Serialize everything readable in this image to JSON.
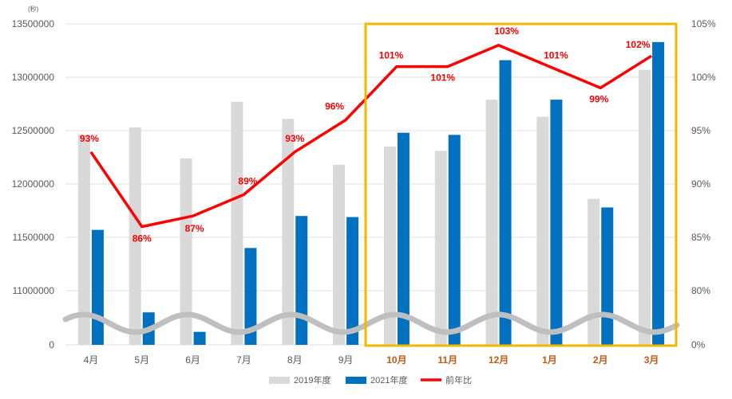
{
  "chart_data": {
    "type": "bar",
    "y_unit_label": "(秒)",
    "categories": [
      "4月",
      "5月",
      "6月",
      "7月",
      "8月",
      "9月",
      "10月",
      "11月",
      "12月",
      "1月",
      "2月",
      "3月"
    ],
    "highlighted_categories": [
      "10月",
      "11月",
      "12月",
      "1月",
      "2月",
      "3月"
    ],
    "ylim_left": [
      10500000,
      13500000
    ],
    "yticks_left": [
      "0",
      "11000000",
      "11500000",
      "12000000",
      "12500000",
      "13000000",
      "13500000"
    ],
    "ylim_right": [
      75,
      105
    ],
    "yticks_right": [
      "0%",
      "80%",
      "85%",
      "90%",
      "95%",
      "100%",
      "105%"
    ],
    "axis_break": "wavy break on left axis between 0 and 11000000",
    "series": [
      {
        "name": "2019年度",
        "kind": "bar",
        "axis": "left",
        "color": "#d9d9d9",
        "values": [
          12460000,
          12530000,
          12240000,
          12770000,
          12610000,
          12180000,
          12350000,
          12310000,
          12790000,
          12630000,
          11860000,
          13070000
        ]
      },
      {
        "name": "2021年度",
        "kind": "bar",
        "axis": "left",
        "color": "#0070c0",
        "values": [
          11570000,
          10800000,
          10620000,
          11400000,
          11700000,
          11690000,
          12480000,
          12460000,
          13160000,
          12790000,
          11780000,
          13330000
        ]
      },
      {
        "name": "前年比",
        "kind": "line",
        "axis": "right",
        "color": "#ff0000",
        "values": [
          93,
          86,
          87,
          89,
          93,
          96,
          101,
          101,
          103,
          101,
          99,
          102
        ],
        "labels": [
          "93%",
          "86%",
          "87%",
          "89%",
          "93%",
          "96%",
          "101%",
          "101%",
          "103%",
          "101%",
          "99%",
          "102%"
        ]
      }
    ],
    "legend": {
      "placement": "bottom-center",
      "entries": [
        "2019年度",
        "2021年度",
        "前年比"
      ]
    },
    "colors": {
      "highlight_box": "#f2b800",
      "break_wave": "#bfbfbf",
      "highlight_label": "#c55a11",
      "grid": "#e0e0e0"
    },
    "grid": true
  }
}
